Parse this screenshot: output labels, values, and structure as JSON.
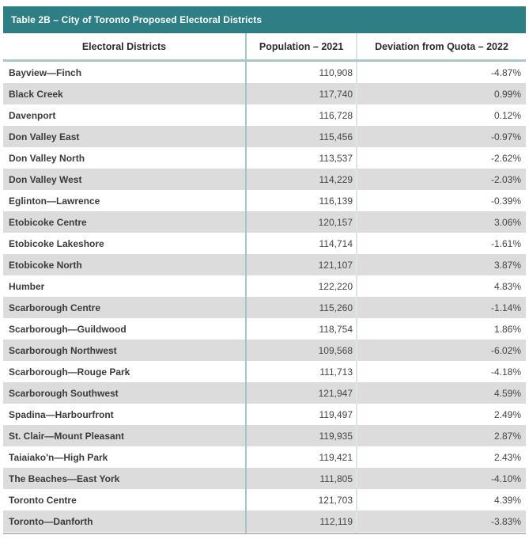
{
  "chart_data": {
    "type": "table",
    "title": "Table 2B – City of Toronto Proposed Electoral Districts",
    "columns": [
      "Electoral Districts",
      "Population – 2021",
      "Deviation from Quota – 2022"
    ],
    "rows": [
      [
        "Bayview—Finch",
        "110,908",
        "-4.87%"
      ],
      [
        "Black Creek",
        "117,740",
        "0.99%"
      ],
      [
        "Davenport",
        "116,728",
        "0.12%"
      ],
      [
        "Don Valley East",
        "115,456",
        "-0.97%"
      ],
      [
        "Don Valley North",
        "113,537",
        "-2.62%"
      ],
      [
        "Don Valley West",
        "114,229",
        "-2.03%"
      ],
      [
        "Eglinton—Lawrence",
        "116,139",
        "-0.39%"
      ],
      [
        "Etobicoke Centre",
        "120,157",
        "3.06%"
      ],
      [
        "Etobicoke Lakeshore",
        "114,714",
        "-1.61%"
      ],
      [
        "Etobicoke North",
        "121,107",
        "3.87%"
      ],
      [
        "Humber",
        "122,220",
        "4.83%"
      ],
      [
        "Scarborough Centre",
        "115,260",
        "-1.14%"
      ],
      [
        "Scarborough—Guildwood",
        "118,754",
        "1.86%"
      ],
      [
        "Scarborough Northwest",
        "109,568",
        "-6.02%"
      ],
      [
        "Scarborough—Rouge Park",
        "111,713",
        "-4.18%"
      ],
      [
        "Scarborough Southwest",
        "121,947",
        "4.59%"
      ],
      [
        "Spadina—Harbourfront",
        "119,497",
        "2.49%"
      ],
      [
        "St. Clair—Mount Pleasant",
        "119,935",
        "2.87%"
      ],
      [
        "Taiaiako'n—High Park",
        "119,421",
        "2.43%"
      ],
      [
        "The Beaches—East York",
        "111,805",
        "-4.10%"
      ],
      [
        "Toronto Centre",
        "121,703",
        "4.39%"
      ],
      [
        "Toronto—Danforth",
        "112,119",
        "-3.83%"
      ]
    ]
  },
  "colors": {
    "title_bar_bg": "#2e7e85",
    "title_text": "#ffffff",
    "alt_row_bg": "#dcdcdc",
    "header_rule": "#a9c6cc",
    "divider_primary": "#a6c5cb",
    "divider_secondary": "#dde4e5",
    "bottom_rule": "#b7babb"
  }
}
